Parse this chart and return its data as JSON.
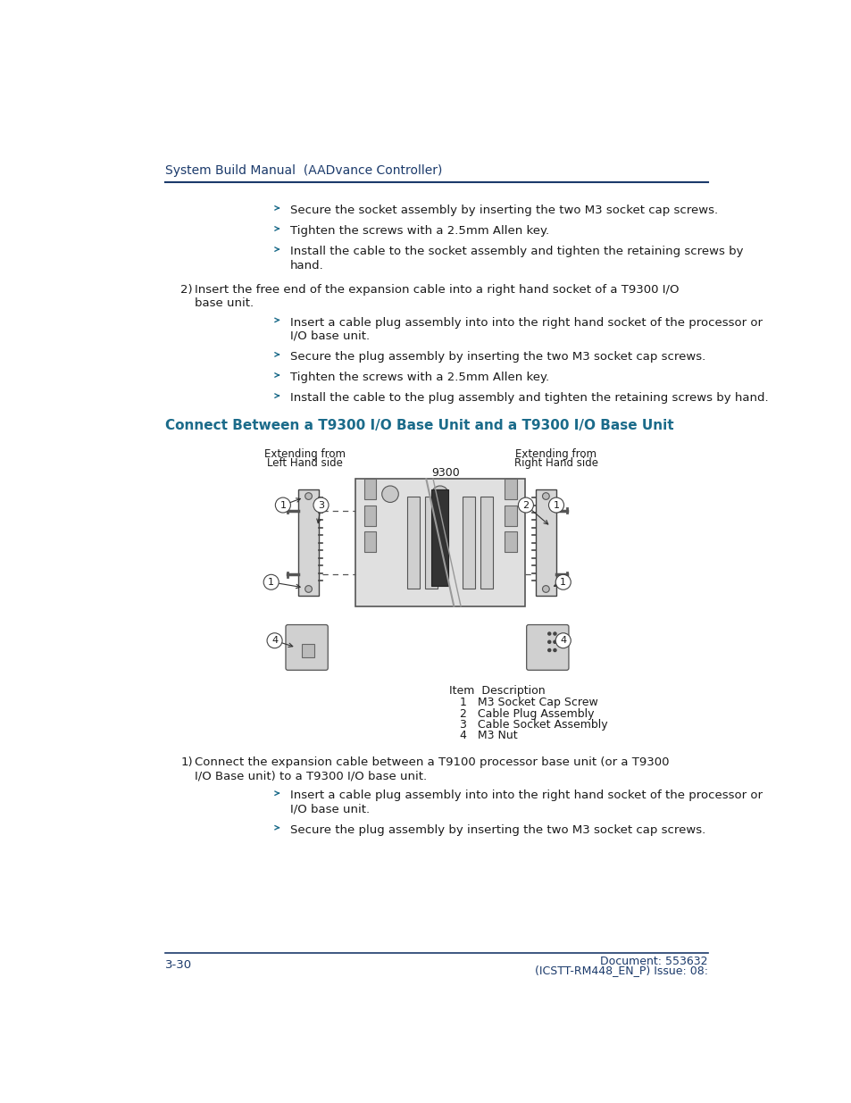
{
  "bg_color": "#ffffff",
  "header_text": "System Build Manual  (AADvance Controller)",
  "header_color": "#1B3A6B",
  "header_line_color": "#1B3A6B",
  "footer_left": "3-30",
  "footer_right_line1": "Document: 553632",
  "footer_right_line2": "(ICSTT-RM448_EN_P) Issue: 08:",
  "footer_color": "#1B3A6B",
  "footer_line_color": "#1B3A6B",
  "section_heading": "Connect Between a T9300 I/O Base Unit and a T9300 I/O Base Unit",
  "section_heading_color": "#1B6B8A",
  "bullet_color": "#1B6B8A",
  "text_color": "#1a1a1a",
  "bullet_items_top": [
    "Secure the socket assembly by inserting the two M3 socket cap screws.",
    "Tighten the screws with a 2.5mm Allen key.",
    "Install the cable to the socket assembly and tighten the retaining screws by\nhand."
  ],
  "numbered_item_2_line1": "Insert the free end of the expansion cable into a right hand socket of a T9300 I/O",
  "numbered_item_2_line2": "base unit.",
  "bullet_items_2": [
    "Insert a cable plug assembly into into the right hand socket of the processor or\nI/O base unit.",
    "Secure the plug assembly by inserting the two M3 socket cap screws.",
    "Tighten the screws with a 2.5mm Allen key.",
    "Install the cable to the plug assembly and tighten the retaining screws by hand."
  ],
  "numbered_item_1b_line1": "Connect the expansion cable between a T9100 processor base unit (or a T9300",
  "numbered_item_1b_line2": "I/O Base unit) to a T9300 I/O base unit.",
  "bullet_items_1b": [
    "Insert a cable plug assembly into into the right hand socket of the processor or\nI/O base unit.",
    "Secure the plug assembly by inserting the two M3 socket cap screws."
  ],
  "diagram_label_left_top": "Extending from",
  "diagram_label_left_bot": "Left Hand side",
  "diagram_label_right_top": "Extending from",
  "diagram_label_right_bot": "Right Hand side",
  "diagram_label_9300": "9300",
  "legend_header": "Item  Description",
  "legend_rows": [
    "   1   M3 Socket Cap Screw",
    "   2   Cable Plug Assembly",
    "   3   Cable Socket Assembly",
    "   4   M3 Nut"
  ]
}
